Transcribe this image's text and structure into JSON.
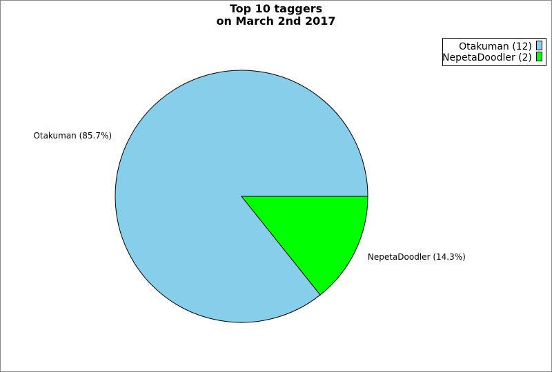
{
  "chart_data": {
    "type": "pie",
    "title_line1": "Top 10 taggers",
    "title_line2": "on March 2nd 2017",
    "slices": [
      {
        "name": "Otakuman",
        "value": 12,
        "percent_label": "Otakuman (85.7%)",
        "legend_label": "Otakuman (12)",
        "color": "#87ceeb"
      },
      {
        "name": "NepetaDoodler",
        "value": 2,
        "percent_label": "NepetaDoodler (14.3%)",
        "legend_label": "NepetaDoodler (2)",
        "color": "#00ff00"
      }
    ],
    "legend_position": "top-right"
  }
}
